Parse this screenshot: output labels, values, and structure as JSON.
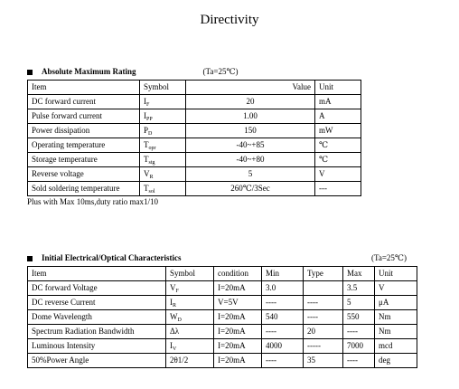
{
  "title": "Directivity",
  "abs": {
    "heading": "Absolute Maximum Rating",
    "condition": "(Ta=25℃)",
    "headers": {
      "item": "Item",
      "symbol": "Symbol",
      "value": "Value",
      "unit": "Unit"
    },
    "rows": [
      {
        "item": "DC forward current",
        "sym": "I",
        "sub": "F",
        "value": "20",
        "unit": "mA"
      },
      {
        "item": "Pulse forward current",
        "sym": "I",
        "sub": "PP",
        "value": "1.00",
        "unit": "A"
      },
      {
        "item": "Power dissipation",
        "sym": "P",
        "sub": "D",
        "value": "150",
        "unit": "mW"
      },
      {
        "item": "Operating temperature",
        "sym": "T",
        "sub": "opr",
        "value": "-40~+85",
        "unit": "℃"
      },
      {
        "item": "Storage temperature",
        "sym": "T",
        "sub": "stg",
        "value": "-40~+80",
        "unit": "℃"
      },
      {
        "item": "Reverse voltage",
        "sym": "V",
        "sub": "R",
        "value": "5",
        "unit": "V"
      },
      {
        "item": "Sold soldering temperature",
        "sym": "T",
        "sub": "sol",
        "value": "260℃/3Sec",
        "unit": "---"
      }
    ],
    "note": "Plus with Max 10ms,duty ratio max1/10"
  },
  "elec": {
    "heading": "Initial Electrical/Optical Characteristics",
    "condition": "(Ta=25℃)",
    "headers": {
      "item": "Item",
      "symbol": "Symbol",
      "condition": "condition",
      "min": "Min",
      "type": "Type",
      "max": "Max",
      "unit": "Unit"
    },
    "rows": [
      {
        "item": "DC forward Voltage",
        "sym": "V",
        "sub": "F",
        "condition": "I=20mA",
        "min": "3.0",
        "type": "",
        "max": "3.5",
        "unit": "V"
      },
      {
        "item": "DC reverse Current",
        "sym": "I",
        "sub": "R",
        "condition": "V=5V",
        "min": "----",
        "type": "----",
        "max": "5",
        "unit": "μA"
      },
      {
        "item": "Dome Wavelength",
        "sym": "W",
        "sub": "D",
        "condition": "I=20mA",
        "min": "540",
        "type": "----",
        "max": "550",
        "unit": "Nm"
      },
      {
        "item": "Spectrum Radiation Bandwidth",
        "sym": "Δλ",
        "sub": "",
        "condition": "I=20mA",
        "min": "----",
        "type": "20",
        "max": "----",
        "unit": "Nm"
      },
      {
        "item": "Luminous Intensity",
        "sym": "I",
        "sub": "V",
        "condition": "I=20mA",
        "min": "4000",
        "type": "-----",
        "max": "7000",
        "unit": "mcd"
      },
      {
        "item": "50%Power Angle",
        "sym": "2θ1/2",
        "sub": "",
        "condition": "I=20mA",
        "min": "----",
        "type": "35",
        "max": "----",
        "unit": "deg"
      }
    ]
  }
}
